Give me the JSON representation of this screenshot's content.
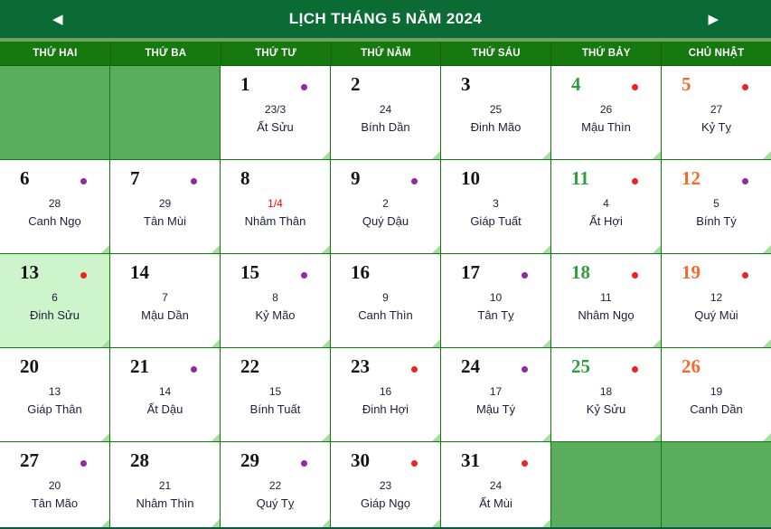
{
  "header": {
    "title": "LỊCH THÁNG 5 NĂM 2024",
    "prev_icon": "◀",
    "next_icon": "▶"
  },
  "weekdays": [
    "THỨ HAI",
    "THỨ BA",
    "THỨ TƯ",
    "THỨ NĂM",
    "THỨ SÁU",
    "THỨ BẢY",
    "CHỦ NHẬT"
  ],
  "colors": {
    "topbar_bg": "#0a6b35",
    "weekday_row_bg": "#15790f",
    "grid_line": "#0b7d0b",
    "empty_cell_bg": "#5aad5c",
    "today_cell_bg": "#cdf4cb",
    "saturday_number": "#2e9e3e",
    "sunday_number": "#f6682c",
    "dot_purple": "#9226a5",
    "dot_red": "#ee2222",
    "lunar_special_red": "#fe0000",
    "lunar_text": "#1d1d3a"
  },
  "calendar": {
    "rows": 5,
    "cols": 7,
    "cells": [
      {
        "empty": true
      },
      {
        "empty": true
      },
      {
        "day": "1",
        "lunar": "23/3",
        "name": "Ất Sửu",
        "dot": "purple"
      },
      {
        "day": "2",
        "lunar": "24",
        "name": "Bính Dần"
      },
      {
        "day": "3",
        "lunar": "25",
        "name": "Đinh Mão"
      },
      {
        "day": "4",
        "lunar": "26",
        "name": "Mậu Thìn",
        "dot": "red",
        "day_color": "saturday"
      },
      {
        "day": "5",
        "lunar": "27",
        "name": "Kỷ Tỵ",
        "dot": "red",
        "day_color": "sunday"
      },
      {
        "day": "6",
        "lunar": "28",
        "name": "Canh Ngọ",
        "dot": "purple"
      },
      {
        "day": "7",
        "lunar": "29",
        "name": "Tân Mùi",
        "dot": "purple"
      },
      {
        "day": "8",
        "lunar": "1/4",
        "name": "Nhâm Thân",
        "lunar_red": true
      },
      {
        "day": "9",
        "lunar": "2",
        "name": "Quý Dậu",
        "dot": "purple"
      },
      {
        "day": "10",
        "lunar": "3",
        "name": "Giáp Tuất"
      },
      {
        "day": "11",
        "lunar": "4",
        "name": "Ất Hợi",
        "dot": "red",
        "day_color": "saturday"
      },
      {
        "day": "12",
        "lunar": "5",
        "name": "Bính Tý",
        "dot": "purple",
        "day_color": "sunday"
      },
      {
        "day": "13",
        "lunar": "6",
        "name": "Đinh Sửu",
        "dot": "red",
        "today": true
      },
      {
        "day": "14",
        "lunar": "7",
        "name": "Mậu Dần"
      },
      {
        "day": "15",
        "lunar": "8",
        "name": "Kỷ Mão",
        "dot": "purple"
      },
      {
        "day": "16",
        "lunar": "9",
        "name": "Canh Thìn"
      },
      {
        "day": "17",
        "lunar": "10",
        "name": "Tân Tỵ",
        "dot": "purple"
      },
      {
        "day": "18",
        "lunar": "11",
        "name": "Nhâm Ngọ",
        "dot": "red",
        "day_color": "saturday"
      },
      {
        "day": "19",
        "lunar": "12",
        "name": "Quý Mùi",
        "dot": "red",
        "day_color": "sunday"
      },
      {
        "day": "20",
        "lunar": "13",
        "name": "Giáp Thân"
      },
      {
        "day": "21",
        "lunar": "14",
        "name": "Ất Dậu",
        "dot": "purple"
      },
      {
        "day": "22",
        "lunar": "15",
        "name": "Bính Tuất"
      },
      {
        "day": "23",
        "lunar": "16",
        "name": "Đinh Hợi",
        "dot": "red"
      },
      {
        "day": "24",
        "lunar": "17",
        "name": "Mậu Tý",
        "dot": "purple"
      },
      {
        "day": "25",
        "lunar": "18",
        "name": "Kỷ Sửu",
        "dot": "red",
        "day_color": "saturday"
      },
      {
        "day": "26",
        "lunar": "19",
        "name": "Canh Dần",
        "day_color": "sunday"
      },
      {
        "day": "27",
        "lunar": "20",
        "name": "Tân Mão",
        "dot": "purple"
      },
      {
        "day": "28",
        "lunar": "21",
        "name": "Nhâm Thìn"
      },
      {
        "day": "29",
        "lunar": "22",
        "name": "Quý Tỵ",
        "dot": "purple"
      },
      {
        "day": "30",
        "lunar": "23",
        "name": "Giáp Ngọ",
        "dot": "red"
      },
      {
        "day": "31",
        "lunar": "24",
        "name": "Ất Mùi",
        "dot": "red"
      },
      {
        "empty": true
      },
      {
        "empty": true
      }
    ]
  }
}
